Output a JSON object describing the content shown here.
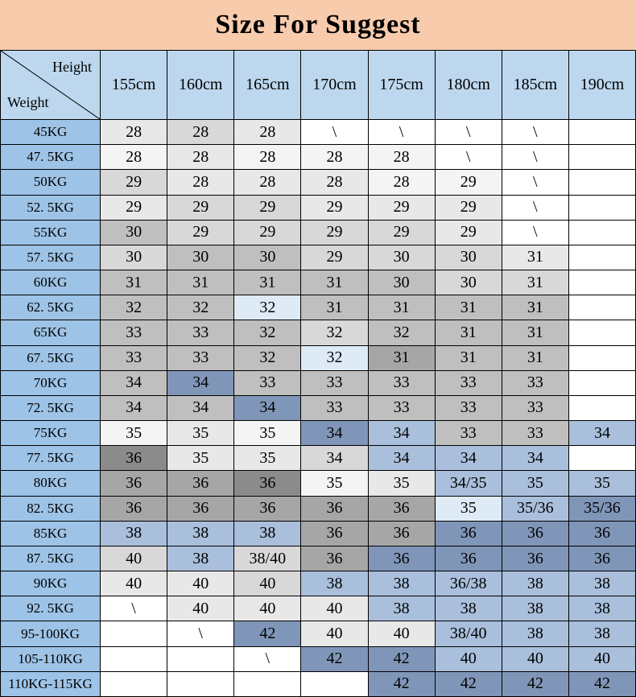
{
  "title": "Size For Suggest",
  "colors": {
    "title_bg": "#F8CBAD",
    "header_bg": "#BDD7EE",
    "row_label_bg": "#9DC3E6",
    "border": "#000000",
    "palette": {
      "w": "#FFFFFF",
      "g1": "#F4F4F4",
      "g2": "#E8E8E8",
      "g3": "#D8D8D8",
      "g4": "#BFBFBF",
      "g5": "#A6A6A6",
      "g6": "#8B8B8B",
      "b1": "#DEEBF7",
      "b2": "#A9BFDB",
      "b3": "#8096B8"
    }
  },
  "chart_data": {
    "type": "table",
    "title": "Size For Suggest",
    "column_axis_label": "Height",
    "row_axis_label": "Weight",
    "columns": [
      "155cm",
      "160cm",
      "165cm",
      "170cm",
      "175cm",
      "180cm",
      "185cm",
      "190cm"
    ],
    "rows": [
      {
        "label": "45KG",
        "values": [
          "28",
          "28",
          "28",
          "\\",
          "\\",
          "\\",
          "\\",
          ""
        ],
        "cell_colors": [
          "g2",
          "g3",
          "g2",
          "w",
          "w",
          "w",
          "w",
          "w"
        ]
      },
      {
        "label": "47. 5KG",
        "values": [
          "28",
          "28",
          "28",
          "28",
          "28",
          "\\",
          "\\",
          ""
        ],
        "cell_colors": [
          "g1",
          "g2",
          "g1",
          "g1",
          "g1",
          "w",
          "w",
          "w"
        ]
      },
      {
        "label": "50KG",
        "values": [
          "29",
          "28",
          "28",
          "28",
          "28",
          "29",
          "\\",
          ""
        ],
        "cell_colors": [
          "g3",
          "g2",
          "g2",
          "g2",
          "g1",
          "g1",
          "w",
          "w"
        ]
      },
      {
        "label": "52. 5KG",
        "values": [
          "29",
          "29",
          "29",
          "29",
          "29",
          "29",
          "\\",
          ""
        ],
        "cell_colors": [
          "g2",
          "g3",
          "g3",
          "g2",
          "g2",
          "g2",
          "w",
          "w"
        ]
      },
      {
        "label": "55KG",
        "values": [
          "30",
          "29",
          "29",
          "29",
          "29",
          "29",
          "\\",
          ""
        ],
        "cell_colors": [
          "g4",
          "g3",
          "g3",
          "g3",
          "g3",
          "g2",
          "w",
          "w"
        ]
      },
      {
        "label": "57. 5KG",
        "values": [
          "30",
          "30",
          "30",
          "29",
          "30",
          "30",
          "31",
          ""
        ],
        "cell_colors": [
          "g3",
          "g4",
          "g4",
          "g3",
          "g3",
          "g3",
          "g2",
          "w"
        ]
      },
      {
        "label": "60KG",
        "values": [
          "31",
          "31",
          "31",
          "31",
          "30",
          "30",
          "31",
          ""
        ],
        "cell_colors": [
          "g4",
          "g4",
          "g4",
          "g4",
          "g4",
          "g3",
          "g3",
          "w"
        ]
      },
      {
        "label": "62. 5KG",
        "values": [
          "32",
          "32",
          "32",
          "31",
          "31",
          "31",
          "31",
          ""
        ],
        "cell_colors": [
          "g4",
          "g4",
          "b1",
          "g4",
          "g4",
          "g4",
          "g4",
          "w"
        ]
      },
      {
        "label": "65KG",
        "values": [
          "33",
          "33",
          "32",
          "32",
          "32",
          "31",
          "31",
          ""
        ],
        "cell_colors": [
          "g4",
          "g4",
          "g4",
          "g3",
          "g4",
          "g4",
          "g4",
          "w"
        ]
      },
      {
        "label": "67. 5KG",
        "values": [
          "33",
          "33",
          "32",
          "32",
          "31",
          "31",
          "31",
          ""
        ],
        "cell_colors": [
          "g4",
          "g4",
          "g4",
          "b1",
          "g5",
          "g4",
          "g4",
          "w"
        ]
      },
      {
        "label": "70KG",
        "values": [
          "34",
          "34",
          "33",
          "33",
          "33",
          "33",
          "33",
          ""
        ],
        "cell_colors": [
          "g4",
          "b3",
          "g4",
          "g4",
          "g4",
          "g4",
          "g4",
          "w"
        ]
      },
      {
        "label": "72. 5KG",
        "values": [
          "34",
          "34",
          "34",
          "33",
          "33",
          "33",
          "33",
          ""
        ],
        "cell_colors": [
          "g4",
          "g4",
          "b3",
          "g4",
          "g4",
          "g4",
          "g4",
          "w"
        ]
      },
      {
        "label": "75KG",
        "values": [
          "35",
          "35",
          "35",
          "34",
          "34",
          "33",
          "33",
          "34"
        ],
        "cell_colors": [
          "g1",
          "g2",
          "g1",
          "b3",
          "b2",
          "g4",
          "g4",
          "b2"
        ]
      },
      {
        "label": "77. 5KG",
        "values": [
          "36",
          "35",
          "35",
          "34",
          "34",
          "34",
          "34",
          ""
        ],
        "cell_colors": [
          "g6",
          "g2",
          "g2",
          "g3",
          "b2",
          "b2",
          "b2",
          "w"
        ]
      },
      {
        "label": "80KG",
        "values": [
          "36",
          "36",
          "36",
          "35",
          "35",
          "34/35",
          "35",
          "35"
        ],
        "cell_colors": [
          "g5",
          "g5",
          "g6",
          "g1",
          "g2",
          "b2",
          "b2",
          "b2"
        ]
      },
      {
        "label": "82. 5KG",
        "values": [
          "36",
          "36",
          "36",
          "36",
          "36",
          "35",
          "35/36",
          "35/36"
        ],
        "cell_colors": [
          "g5",
          "g5",
          "g5",
          "g5",
          "g5",
          "b1",
          "b2",
          "b3"
        ]
      },
      {
        "label": "85KG",
        "values": [
          "38",
          "38",
          "38",
          "36",
          "36",
          "36",
          "36",
          "36"
        ],
        "cell_colors": [
          "b2",
          "b2",
          "b2",
          "g5",
          "g5",
          "b3",
          "b3",
          "b3"
        ]
      },
      {
        "label": "87. 5KG",
        "values": [
          "40",
          "38",
          "38/40",
          "36",
          "36",
          "36",
          "36",
          "36"
        ],
        "cell_colors": [
          "g3",
          "b2",
          "g3",
          "g5",
          "b3",
          "b3",
          "b3",
          "b3"
        ]
      },
      {
        "label": "90KG",
        "values": [
          "40",
          "40",
          "40",
          "38",
          "38",
          "36/38",
          "38",
          "38"
        ],
        "cell_colors": [
          "g2",
          "g2",
          "g3",
          "b2",
          "b2",
          "b2",
          "b2",
          "b2"
        ]
      },
      {
        "label": "92. 5KG",
        "values": [
          "\\",
          "40",
          "40",
          "40",
          "38",
          "38",
          "38",
          "38"
        ],
        "cell_colors": [
          "w",
          "g2",
          "g2",
          "g2",
          "b2",
          "b2",
          "b2",
          "b2"
        ]
      },
      {
        "label": "95-100KG",
        "values": [
          "",
          "\\",
          "42",
          "40",
          "40",
          "38/40",
          "38",
          "38"
        ],
        "cell_colors": [
          "w",
          "w",
          "b3",
          "g2",
          "g2",
          "b2",
          "b2",
          "b2"
        ]
      },
      {
        "label": "105-110KG",
        "values": [
          "",
          "",
          "\\",
          "42",
          "42",
          "40",
          "40",
          "40"
        ],
        "cell_colors": [
          "w",
          "w",
          "w",
          "b3",
          "b3",
          "b2",
          "b2",
          "b2"
        ]
      },
      {
        "label": "110KG-115KG",
        "values": [
          "",
          "",
          "",
          "",
          "42",
          "42",
          "42",
          "42"
        ],
        "cell_colors": [
          "w",
          "w",
          "w",
          "w",
          "b3",
          "b3",
          "b3",
          "b3"
        ]
      }
    ]
  }
}
